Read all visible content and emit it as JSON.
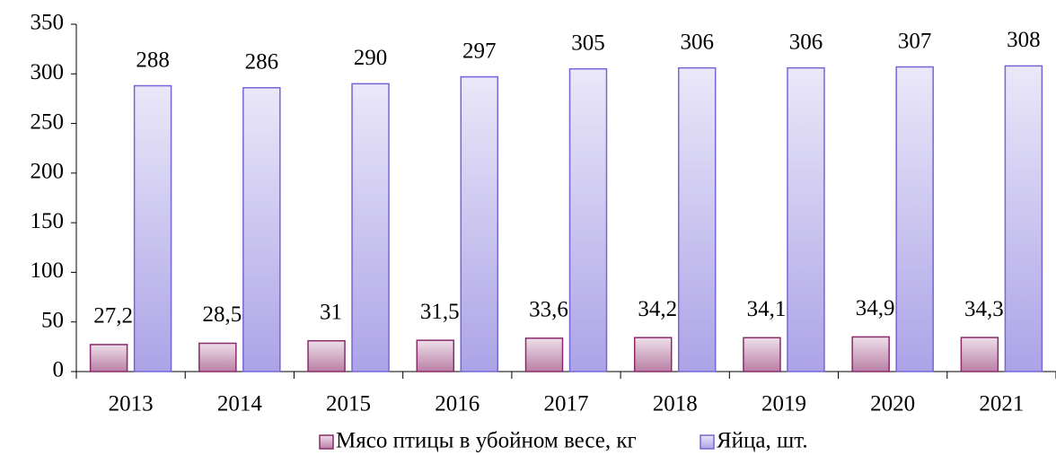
{
  "chart_data": {
    "type": "bar",
    "categories": [
      "2013",
      "2014",
      "2015",
      "2016",
      "2017",
      "2018",
      "2019",
      "2020",
      "2021"
    ],
    "series": [
      {
        "name": "Мясо птицы в убойном весе, кг",
        "color": "#8b2a6b",
        "values": [
          27.2,
          28.5,
          31,
          31.5,
          33.6,
          34.2,
          34.1,
          34.9,
          34.3
        ],
        "value_labels": [
          "27,2",
          "28,5",
          "31",
          "31,5",
          "33,6",
          "34,2",
          "34,1",
          "34,9",
          "34,3"
        ]
      },
      {
        "name": "Яйца, шт.",
        "color": "#7566d6",
        "values": [
          288,
          286,
          290,
          297,
          305,
          306,
          306,
          307,
          308
        ]
      }
    ],
    "ylim": [
      0,
      350
    ],
    "yticks": [
      0,
      50,
      100,
      150,
      200,
      250,
      300,
      350
    ],
    "grid": false,
    "legend": "bottom"
  }
}
